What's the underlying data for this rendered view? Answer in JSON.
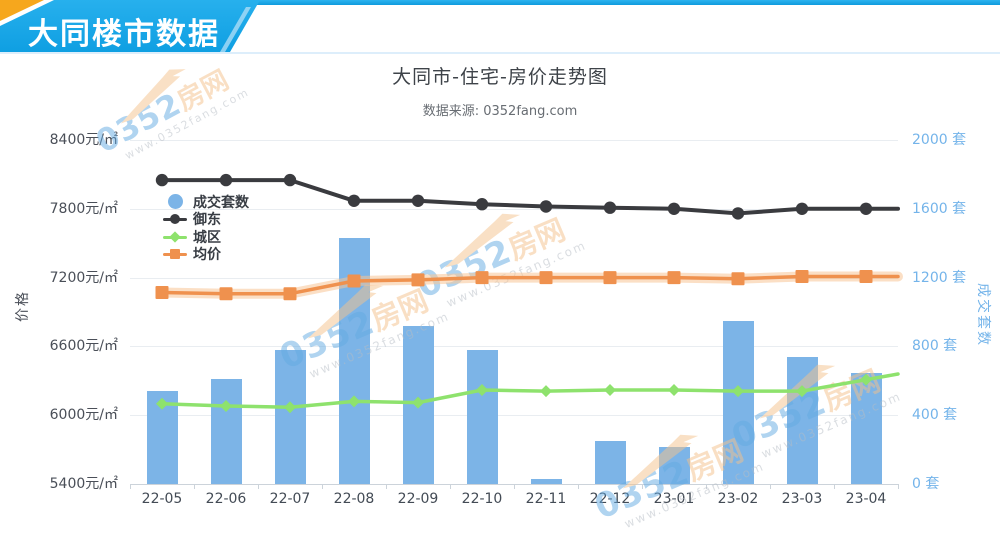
{
  "header": {
    "title": "大同楼市数据"
  },
  "chart": {
    "title": "大同市-住宅-房价走势图",
    "subtitle": "数据来源: 0352fang.com",
    "legend": [
      {
        "label": "成交套数",
        "type": "bar",
        "color": "#7cb4e7"
      },
      {
        "label": "御东",
        "type": "line",
        "color": "#3a3b3f"
      },
      {
        "label": "城区",
        "type": "line",
        "color": "#8ee26d"
      },
      {
        "label": "均价",
        "type": "line",
        "color": "#ef914e"
      }
    ],
    "y_left": {
      "title": "价格",
      "ticks": [
        "8400元/㎡",
        "7800元/㎡",
        "7200元/㎡",
        "6600元/㎡",
        "6000元/㎡",
        "5400元/㎡"
      ]
    },
    "y_right": {
      "title": "成交套数",
      "ticks": [
        "2000 套",
        "1600 套",
        "1200 套",
        "800 套",
        "400 套",
        "0 套"
      ]
    }
  },
  "watermark": {
    "brand_blue": "0352",
    "brand_orange": "房网",
    "url": "www.0352fang.com"
  },
  "chart_data": {
    "type": "bar",
    "combo": [
      "bar",
      "line"
    ],
    "title": "大同市-住宅-房价走势图",
    "subtitle": "数据来源: 0352fang.com",
    "categories": [
      "22-05",
      "22-06",
      "22-07",
      "22-08",
      "22-09",
      "22-10",
      "22-11",
      "22-12",
      "23-01",
      "23-02",
      "23-03",
      "23-04"
    ],
    "series": [
      {
        "name": "成交套数",
        "type": "bar",
        "axis": "right",
        "color": "#7cb4e7",
        "marker": "none",
        "values": [
          540,
          610,
          780,
          1430,
          920,
          780,
          30,
          250,
          215,
          950,
          740,
          645
        ]
      },
      {
        "name": "御东",
        "type": "line",
        "axis": "left",
        "color": "#3a3b3f",
        "marker": "circle",
        "values": [
          8050,
          8050,
          8050,
          7870,
          7870,
          7840,
          7820,
          7810,
          7800,
          7760,
          7800,
          7800
        ]
      },
      {
        "name": "城区",
        "type": "line",
        "axis": "left",
        "color": "#8ee26d",
        "marker": "diamond",
        "values": [
          6100,
          6080,
          6070,
          6120,
          6110,
          6220,
          6210,
          6220,
          6220,
          6210,
          6210,
          6310
        ]
      },
      {
        "name": "均价",
        "type": "line",
        "axis": "left",
        "color": "#ef914e",
        "marker": "square",
        "values": [
          7070,
          7060,
          7060,
          7170,
          7180,
          7200,
          7200,
          7200,
          7200,
          7190,
          7210,
          7210
        ]
      }
    ],
    "y_left": {
      "label": "价格",
      "min": 5400,
      "max": 8400,
      "step": 600,
      "tick_suffix": "元/㎡"
    },
    "y_right": {
      "label": "成交套数",
      "min": 0,
      "max": 2000,
      "step": 400,
      "tick_suffix": "套"
    },
    "grid": true,
    "legend_position": "top-left"
  }
}
